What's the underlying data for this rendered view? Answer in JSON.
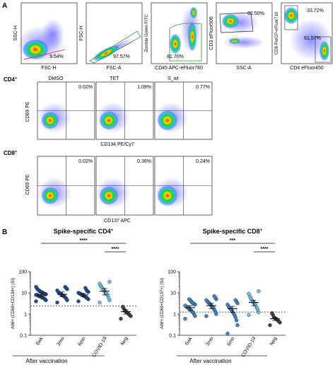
{
  "colors": {
    "flow_low": "#2c2cff",
    "flow_mid": "#20d020",
    "flow_high": "#ff2a00",
    "cd4_fill": "#1f4e99",
    "cd8_fill": "#3f88c8",
    "covid_fill": "#6cc3e0",
    "neg_fill": "#444444"
  },
  "panelA": {
    "letter": "A",
    "gating": [
      {
        "y_label": "SSC-H",
        "x_label": "FSC-H",
        "pct": "9.54%"
      },
      {
        "y_label": "FSC-H",
        "x_label": "FSC-A",
        "pct": "97.57%"
      },
      {
        "y_label": "Zombie Green FITC",
        "x_label": "CD45 APC-eFluor780",
        "pct": "81.70%"
      },
      {
        "y_label": "CD3 eFluor506",
        "x_label": "SSC-A",
        "pct": "82.50%"
      },
      {
        "y_label": "CD8 PerCP-eFluor710",
        "x_label": "CD4 eFluor450",
        "pct": "33.72%",
        "pct2": "61.57%"
      }
    ],
    "conditions": [
      "DMSO",
      "TET",
      "S_wt"
    ],
    "cd4": {
      "label": "CD4",
      "sup": "+",
      "y_label": "CD69 PE",
      "x_label": "CD134 PE/Cy7",
      "pcts": [
        "0.02%",
        "1.09%",
        "0.77%"
      ]
    },
    "cd8": {
      "label": "CD8",
      "sup": "+",
      "y_label": "CD69 PE",
      "x_label": "CD137 APC",
      "pcts": [
        "0.02%",
        "0.36%",
        "0.24%"
      ]
    }
  },
  "panelB": {
    "letter": "B",
    "after_vaccination": "After vaccination",
    "chart_data": [
      {
        "type": "scatter",
        "title": "Spike-specific CD4",
        "title_sup": "+",
        "ylabel": "AIM+ (CD69+CD134+) (SI)",
        "yscale": "log",
        "ylim": [
          0.1,
          100
        ],
        "yticks": [
          "100",
          "10",
          "1",
          "0.1"
        ],
        "threshold": 2.4,
        "categories": [
          "6wk",
          "3mo",
          "6mo",
          "COVID-19",
          "Neg"
        ],
        "sig": [
          {
            "label": "****",
            "from": "6wk",
            "to": "Neg"
          },
          {
            "label": "****",
            "from": "COVID-19",
            "to": "Neg"
          }
        ],
        "groups": [
          {
            "category": "6wk",
            "mean": 8,
            "err": [
              6.5,
              10
            ],
            "values": [
              4,
              4.5,
              5,
              5.5,
              6,
              6,
              6.5,
              7,
              7,
              7.5,
              8,
              8,
              8.5,
              9,
              9,
              10,
              10.5,
              11,
              12,
              13,
              14,
              16,
              19
            ]
          },
          {
            "category": "3mo",
            "mean": 8.5,
            "err": [
              6.5,
              11
            ],
            "values": [
              3.5,
              4.5,
              5.5,
              6,
              7,
              7.5,
              8,
              8.5,
              9,
              10,
              11,
              13,
              15,
              17,
              19
            ]
          },
          {
            "category": "6mo",
            "mean": 8,
            "err": [
              6.5,
              9.5
            ],
            "values": [
              4,
              5,
              5.5,
              6,
              6.5,
              7,
              7.5,
              8,
              8.5,
              9,
              9.5,
              10,
              11,
              12,
              14,
              17
            ]
          },
          {
            "category": "COVID-19",
            "mean": 12,
            "err": [
              8,
              16
            ],
            "values": [
              3.5,
              4.5,
              6,
              8,
              9,
              10,
              12,
              14,
              16,
              19,
              22,
              27,
              33
            ]
          },
          {
            "category": "Neg",
            "mean": 1.3,
            "err": [
              1,
              1.6
            ],
            "values": [
              0.6,
              0.8,
              0.9,
              1,
              1.1,
              1.2,
              1.3,
              1.5,
              1.8,
              2.2
            ]
          }
        ]
      },
      {
        "type": "scatter",
        "title": "Spike-specific CD8",
        "title_sup": "+",
        "ylabel": "AIM+ (CD69+CD137+) (SI)",
        "yscale": "log",
        "ylim": [
          0.1,
          100
        ],
        "yticks": [
          "100",
          "10",
          "1",
          "0.1"
        ],
        "threshold": 1.25,
        "categories": [
          "6wk",
          "3mo",
          "6mo",
          "COVID-19",
          "Neg"
        ],
        "sig": [
          {
            "label": "***",
            "from": "6wk",
            "to": "Neg"
          },
          {
            "label": "****",
            "from": "COVID-19",
            "to": "Neg"
          }
        ],
        "groups": [
          {
            "category": "6wk",
            "mean": 2,
            "err": [
              1.5,
              2.5
            ],
            "values": [
              0.6,
              0.8,
              1,
              1.2,
              1.3,
              1.5,
              1.6,
              1.8,
              2,
              2.1,
              2.3,
              2.5,
              2.8,
              3,
              3.2,
              3.5,
              4,
              4.5,
              5
            ]
          },
          {
            "category": "3mo",
            "mean": 2.5,
            "err": [
              1.8,
              3.2
            ],
            "values": [
              0.8,
              1,
              1.3,
              1.6,
              2,
              2.2,
              2.5,
              2.8,
              3.2,
              3.5,
              4,
              4.5,
              5,
              6,
              7
            ]
          },
          {
            "category": "6mo",
            "mean": 1.8,
            "err": [
              1.2,
              2.3
            ],
            "values": [
              0.12,
              0.3,
              0.5,
              0.7,
              0.9,
              1.1,
              1.3,
              1.5,
              1.8,
              2,
              2.3,
              2.8,
              3.2,
              4,
              4.5
            ]
          },
          {
            "category": "COVID-19",
            "mean": 3.5,
            "err": [
              2.5,
              4.5
            ],
            "values": [
              0.9,
              1.2,
              1.6,
              2,
              2.5,
              3,
              3.5,
              4,
              4.5,
              5.5,
              7,
              9,
              12
            ]
          },
          {
            "category": "Neg",
            "mean": 0.6,
            "err": [
              0.5,
              0.7
            ],
            "values": [
              0.3,
              0.4,
              0.45,
              0.5,
              0.55,
              0.6,
              0.65,
              0.7,
              0.9,
              1.1
            ]
          }
        ]
      }
    ]
  }
}
